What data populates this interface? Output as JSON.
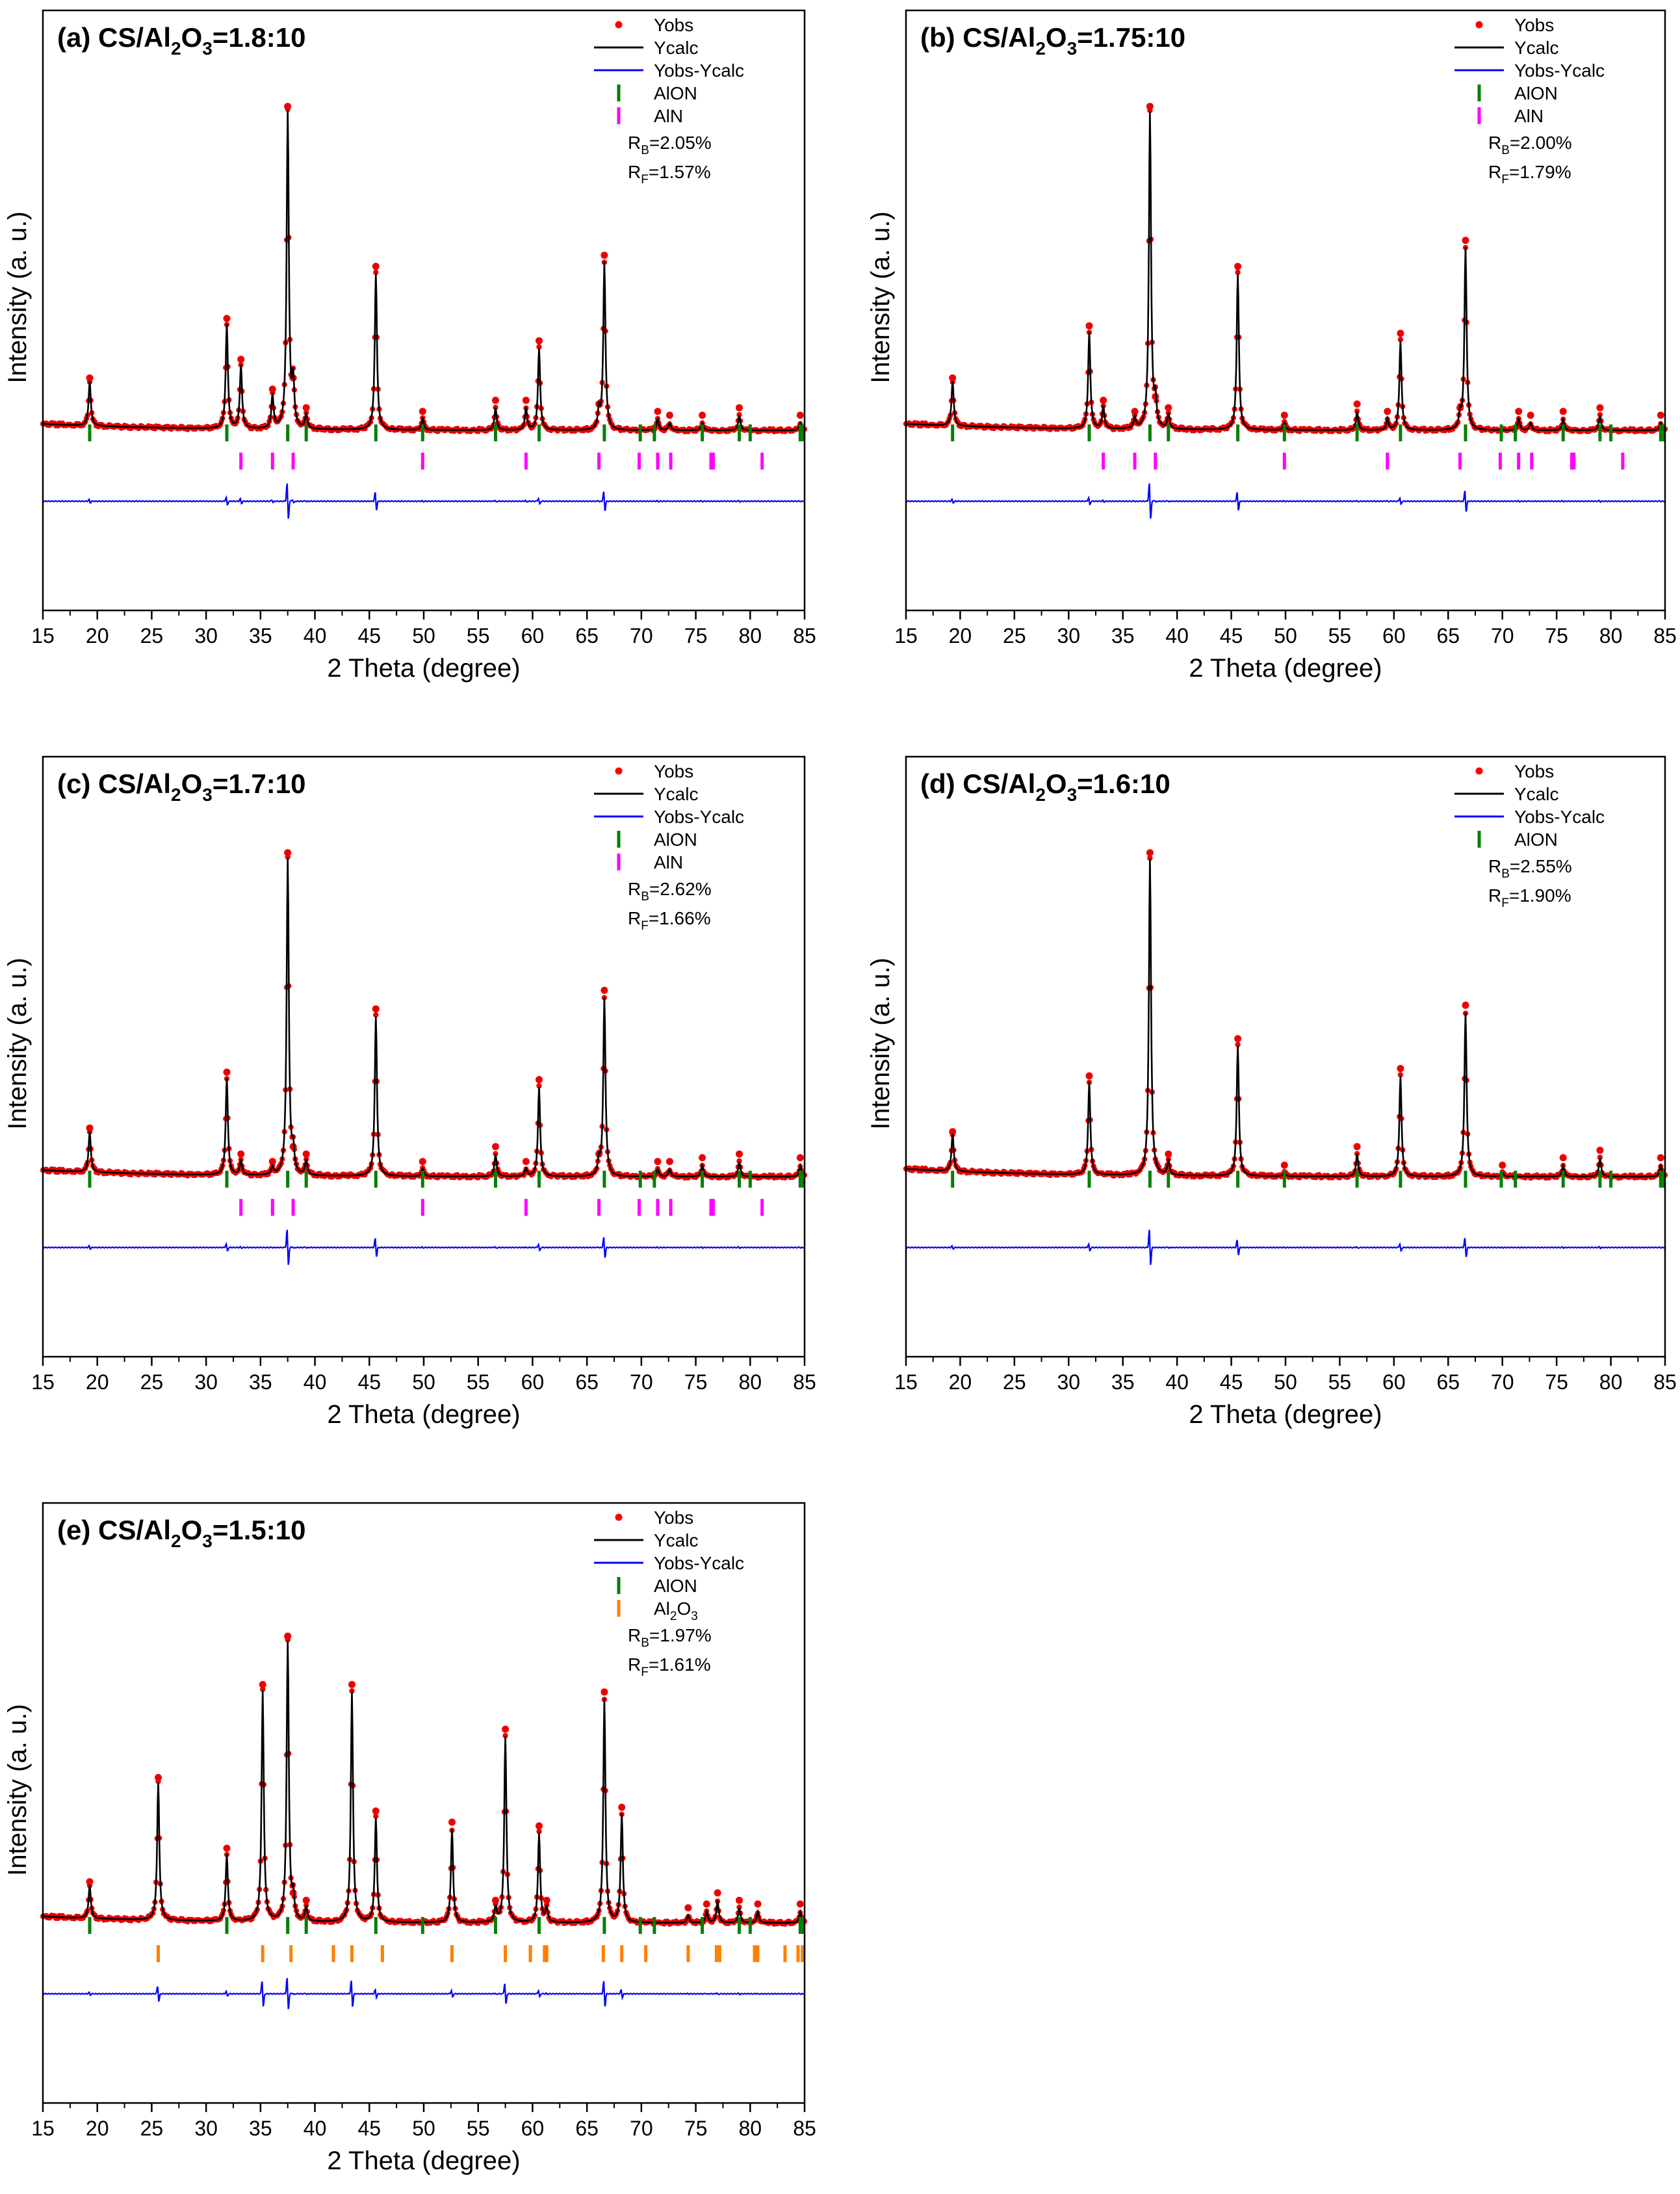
{
  "chart_data": [
    {
      "type": "line",
      "panel": "a",
      "title_prefix": "(a) CS/Al",
      "title_sub1": "2",
      "title_mid": "O",
      "title_sub2": "3",
      "title_suffix": "=1.8:10",
      "xlabel": "2 Theta (degree)",
      "ylabel": "Intensity (a. u.)",
      "xlim": [
        15,
        85
      ],
      "xticks": [
        "15",
        "20",
        "25",
        "30",
        "35",
        "40",
        "45",
        "50",
        "55",
        "60",
        "65",
        "70",
        "75",
        "80",
        "85"
      ],
      "legend_position": "top-right",
      "legend": [
        {
          "label": "Yobs",
          "type": "dot",
          "color": "#ff0000"
        },
        {
          "label": "Ycalc",
          "type": "line",
          "color": "#000000"
        },
        {
          "label": "Yobs-Ycalc",
          "type": "line",
          "color": "#0000ff"
        },
        {
          "label": "AlON",
          "type": "tick",
          "color": "#008000"
        },
        {
          "label": "AlN",
          "type": "tick",
          "color": "#ff00ff"
        }
      ],
      "r_values": [
        {
          "base": "R",
          "sub": "B",
          "value": "=2.05%"
        },
        {
          "base": "R",
          "sub": "F",
          "value": "=1.57%"
        }
      ],
      "baseline": 0.1,
      "peaks": [
        [
          19.3,
          0.12
        ],
        [
          31.9,
          0.28
        ],
        [
          33.2,
          0.17
        ],
        [
          36.1,
          0.09
        ],
        [
          37.5,
          0.85
        ],
        [
          38.0,
          0.12
        ],
        [
          39.2,
          0.04
        ],
        [
          45.6,
          0.42
        ],
        [
          49.9,
          0.03
        ],
        [
          56.6,
          0.06
        ],
        [
          59.4,
          0.06
        ],
        [
          60.6,
          0.22
        ],
        [
          66.6,
          0.45
        ],
        [
          66.1,
          0.05
        ],
        [
          71.5,
          0.03
        ],
        [
          72.6,
          0.02
        ],
        [
          75.6,
          0.02
        ],
        [
          79.0,
          0.04
        ],
        [
          84.6,
          0.02
        ]
      ],
      "phases": [
        {
          "name": "AlON",
          "color": "#008000",
          "positions": [
            19.3,
            31.9,
            37.5,
            39.2,
            45.6,
            49.9,
            56.6,
            60.6,
            66.6,
            69.9,
            71.2,
            75.6,
            79.0,
            80.0,
            84.6,
            84.9
          ]
        },
        {
          "name": "AlN",
          "color": "#ff00ff",
          "positions": [
            33.2,
            36.1,
            38.0,
            49.9,
            59.4,
            66.1,
            69.8,
            71.5,
            72.7,
            76.4,
            76.6,
            81.1
          ]
        }
      ]
    },
    {
      "type": "line",
      "panel": "b",
      "title_prefix": "(b) CS/Al",
      "title_sub1": "2",
      "title_mid": "O",
      "title_sub2": "3",
      "title_suffix": "=1.75:10",
      "xlabel": "2 Theta (degree)",
      "ylabel": "Intensity (a. u.)",
      "xlim": [
        15,
        85
      ],
      "xticks": [
        "15",
        "20",
        "25",
        "30",
        "35",
        "40",
        "45",
        "50",
        "55",
        "60",
        "65",
        "70",
        "75",
        "80",
        "85"
      ],
      "legend_position": "top-right",
      "legend": [
        {
          "label": "Yobs",
          "type": "dot",
          "color": "#ff0000"
        },
        {
          "label": "Ycalc",
          "type": "line",
          "color": "#000000"
        },
        {
          "label": "Yobs-Ycalc",
          "type": "line",
          "color": "#0000ff"
        },
        {
          "label": "AlON",
          "type": "tick",
          "color": "#008000"
        },
        {
          "label": "AlN",
          "type": "tick",
          "color": "#ff00ff"
        }
      ],
      "r_values": [
        {
          "base": "R",
          "sub": "B",
          "value": "=2.00%"
        },
        {
          "base": "R",
          "sub": "F",
          "value": "=1.79%"
        }
      ],
      "baseline": 0.1,
      "peaks": [
        [
          19.3,
          0.12
        ],
        [
          31.9,
          0.26
        ],
        [
          33.2,
          0.06
        ],
        [
          36.1,
          0.03
        ],
        [
          37.5,
          0.85
        ],
        [
          38.0,
          0.07
        ],
        [
          39.2,
          0.04
        ],
        [
          45.6,
          0.42
        ],
        [
          49.9,
          0.02
        ],
        [
          56.6,
          0.05
        ],
        [
          59.4,
          0.03
        ],
        [
          60.6,
          0.24
        ],
        [
          66.6,
          0.49
        ],
        [
          66.1,
          0.04
        ],
        [
          71.5,
          0.03
        ],
        [
          72.6,
          0.02
        ],
        [
          75.6,
          0.03
        ],
        [
          79.0,
          0.04
        ],
        [
          84.6,
          0.02
        ]
      ],
      "phases": [
        {
          "name": "AlON",
          "color": "#008000",
          "positions": [
            19.3,
            31.9,
            37.5,
            39.2,
            45.6,
            49.9,
            56.6,
            60.6,
            66.6,
            69.9,
            71.2,
            75.6,
            79.0,
            80.0,
            84.6,
            84.9
          ]
        },
        {
          "name": "AlN",
          "color": "#ff00ff",
          "positions": [
            33.2,
            36.1,
            38.0,
            49.9,
            59.4,
            66.1,
            69.8,
            71.5,
            72.7,
            76.4,
            76.6,
            81.1
          ]
        }
      ]
    },
    {
      "type": "line",
      "panel": "c",
      "title_prefix": "(c) CS/Al",
      "title_sub1": "2",
      "title_mid": "O",
      "title_sub2": "3",
      "title_suffix": "=1.7:10",
      "xlabel": "2 Theta (degree)",
      "ylabel": "Intensity (a. u.)",
      "xlim": [
        15,
        85
      ],
      "xticks": [
        "15",
        "20",
        "25",
        "30",
        "35",
        "40",
        "45",
        "50",
        "55",
        "60",
        "65",
        "70",
        "75",
        "80",
        "85"
      ],
      "legend_position": "top-right",
      "legend": [
        {
          "label": "Yobs",
          "type": "dot",
          "color": "#ff0000"
        },
        {
          "label": "Ycalc",
          "type": "line",
          "color": "#000000"
        },
        {
          "label": "Yobs-Ycalc",
          "type": "line",
          "color": "#0000ff"
        },
        {
          "label": "AlON",
          "type": "tick",
          "color": "#008000"
        },
        {
          "label": "AlN",
          "type": "tick",
          "color": "#ff00ff"
        }
      ],
      "r_values": [
        {
          "base": "R",
          "sub": "B",
          "value": "=2.62%"
        },
        {
          "base": "R",
          "sub": "F",
          "value": "=1.66%"
        }
      ],
      "baseline": 0.1,
      "peaks": [
        [
          19.3,
          0.11
        ],
        [
          31.9,
          0.26
        ],
        [
          33.2,
          0.04
        ],
        [
          36.1,
          0.02
        ],
        [
          37.5,
          0.85
        ],
        [
          38.0,
          0.06
        ],
        [
          39.2,
          0.04
        ],
        [
          45.6,
          0.43
        ],
        [
          49.9,
          0.02
        ],
        [
          56.6,
          0.06
        ],
        [
          59.4,
          0.02
        ],
        [
          60.6,
          0.24
        ],
        [
          66.6,
          0.48
        ],
        [
          66.1,
          0.04
        ],
        [
          71.5,
          0.02
        ],
        [
          72.6,
          0.02
        ],
        [
          75.6,
          0.03
        ],
        [
          79.0,
          0.04
        ],
        [
          84.6,
          0.03
        ]
      ],
      "phases": [
        {
          "name": "AlON",
          "color": "#008000",
          "positions": [
            19.3,
            31.9,
            37.5,
            39.2,
            45.6,
            49.9,
            56.6,
            60.6,
            66.6,
            69.9,
            71.2,
            75.6,
            79.0,
            80.0,
            84.6,
            84.9
          ]
        },
        {
          "name": "AlN",
          "color": "#ff00ff",
          "positions": [
            33.2,
            36.1,
            38.0,
            49.9,
            59.4,
            66.1,
            69.8,
            71.5,
            72.7,
            76.4,
            76.6,
            81.1
          ]
        }
      ]
    },
    {
      "type": "line",
      "panel": "d",
      "title_prefix": "(d) CS/Al",
      "title_sub1": "2",
      "title_mid": "O",
      "title_sub2": "3",
      "title_suffix": "=1.6:10",
      "xlabel": "2 Theta (degree)",
      "ylabel": "Intensity (a. u.)",
      "xlim": [
        15,
        85
      ],
      "xticks": [
        "15",
        "20",
        "25",
        "30",
        "35",
        "40",
        "45",
        "50",
        "55",
        "60",
        "65",
        "70",
        "75",
        "80",
        "85"
      ],
      "legend_position": "top-right",
      "legend": [
        {
          "label": "Yobs",
          "type": "dot",
          "color": "#ff0000"
        },
        {
          "label": "Ycalc",
          "type": "line",
          "color": "#000000"
        },
        {
          "label": "Yobs-Ycalc",
          "type": "line",
          "color": "#0000ff"
        },
        {
          "label": "AlON",
          "type": "tick",
          "color": "#008000"
        }
      ],
      "r_values": [
        {
          "base": "R",
          "sub": "B",
          "value": "=2.55%"
        },
        {
          "base": "R",
          "sub": "F",
          "value": "=1.90%"
        }
      ],
      "baseline": 0.12,
      "peaks": [
        [
          19.3,
          0.1
        ],
        [
          31.9,
          0.25
        ],
        [
          37.5,
          0.85
        ],
        [
          39.2,
          0.04
        ],
        [
          45.6,
          0.35
        ],
        [
          49.9,
          0.01
        ],
        [
          56.6,
          0.06
        ],
        [
          60.6,
          0.27
        ],
        [
          66.6,
          0.44
        ],
        [
          70.0,
          0.01
        ],
        [
          75.6,
          0.03
        ],
        [
          79.0,
          0.05
        ],
        [
          84.6,
          0.03
        ]
      ],
      "phases": [
        {
          "name": "AlON",
          "color": "#008000",
          "positions": [
            19.3,
            31.9,
            37.5,
            39.2,
            45.6,
            49.9,
            56.6,
            60.6,
            66.6,
            69.9,
            71.2,
            75.6,
            79.0,
            80.0,
            84.6,
            84.9
          ]
        }
      ]
    },
    {
      "type": "line",
      "panel": "e",
      "title_prefix": "(e) CS/Al",
      "title_sub1": "2",
      "title_mid": "O",
      "title_sub2": "3",
      "title_suffix": "=1.5:10",
      "xlabel": "2 Theta (degree)",
      "ylabel": "Intensity (a. u.)",
      "xlim": [
        15,
        85
      ],
      "xticks": [
        "15",
        "20",
        "25",
        "30",
        "35",
        "40",
        "45",
        "50",
        "55",
        "60",
        "65",
        "70",
        "75",
        "80",
        "85"
      ],
      "legend_position": "top-right",
      "legend": [
        {
          "label": "Yobs",
          "type": "dot",
          "color": "#ff0000"
        },
        {
          "label": "Ycalc",
          "type": "line",
          "color": "#000000"
        },
        {
          "label": "Yobs-Ycalc",
          "type": "line",
          "color": "#0000ff"
        },
        {
          "label": "AlON",
          "type": "tick",
          "color": "#008000"
        },
        {
          "label": "Al2O3",
          "type": "tick",
          "color": "#ff8000",
          "base": "Al",
          "sub1": "2",
          "mid": "O",
          "sub2": "3"
        }
      ],
      "r_values": [
        {
          "base": "R",
          "sub": "B",
          "value": "=1.97%"
        },
        {
          "base": "R",
          "sub": "F",
          "value": "=1.61%"
        }
      ],
      "baseline": 0.1,
      "peaks": [
        [
          19.3,
          0.09
        ],
        [
          25.6,
          0.37
        ],
        [
          31.9,
          0.18
        ],
        [
          35.2,
          0.62
        ],
        [
          37.5,
          0.75
        ],
        [
          38.0,
          0.06
        ],
        [
          39.2,
          0.04
        ],
        [
          43.4,
          0.62
        ],
        [
          45.6,
          0.28
        ],
        [
          52.6,
          0.25
        ],
        [
          57.5,
          0.5
        ],
        [
          56.6,
          0.04
        ],
        [
          60.6,
          0.24
        ],
        [
          61.3,
          0.04
        ],
        [
          66.6,
          0.6
        ],
        [
          68.2,
          0.29
        ],
        [
          74.3,
          0.02
        ],
        [
          76.0,
          0.03
        ],
        [
          77.0,
          0.06
        ],
        [
          79.0,
          0.04
        ],
        [
          80.7,
          0.03
        ],
        [
          84.6,
          0.03
        ]
      ],
      "phases": [
        {
          "name": "AlON",
          "color": "#008000",
          "positions": [
            19.3,
            31.9,
            37.5,
            39.2,
            45.6,
            49.9,
            56.6,
            60.6,
            66.6,
            69.9,
            71.2,
            75.6,
            79.0,
            80.0,
            84.6,
            84.9
          ]
        },
        {
          "name": "Al2O3",
          "color": "#ff8000",
          "positions": [
            25.6,
            35.2,
            37.8,
            41.7,
            43.4,
            46.2,
            52.6,
            57.5,
            59.8,
            61.1,
            61.3,
            66.5,
            68.2,
            70.4,
            74.3,
            76.9,
            77.2,
            80.4,
            80.7,
            83.2,
            84.4,
            84.8
          ]
        }
      ]
    }
  ]
}
